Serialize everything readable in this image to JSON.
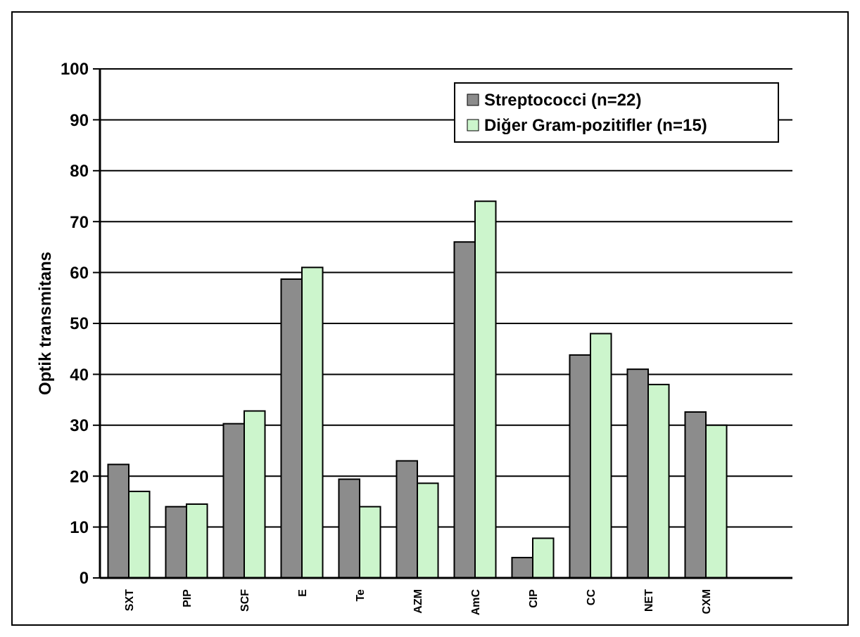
{
  "chart_data": {
    "type": "bar",
    "ylabel": "Optik transmitans",
    "categories": [
      "SXT",
      "PIP",
      "SCF",
      "E",
      "Te",
      "AZM",
      "AmC",
      "CIP",
      "CC",
      "NET",
      "CXM"
    ],
    "series": [
      {
        "name": "Streptococci (n=22)",
        "color": "#8c8c8c",
        "values": [
          22.3,
          14,
          30.3,
          58.7,
          19.4,
          23,
          66,
          4,
          43.8,
          41,
          32.6
        ]
      },
      {
        "name": "Diğer Gram-pozitifler (n=15)",
        "color": "#ccf5cc",
        "values": [
          17,
          14.5,
          32.8,
          61,
          14,
          18.6,
          74,
          7.8,
          48,
          38,
          30
        ]
      }
    ],
    "ylim": [
      0,
      100
    ],
    "yticks": [
      0,
      10,
      20,
      30,
      40,
      50,
      60,
      70,
      80,
      90,
      100
    ],
    "grid": "y",
    "legend": "top right"
  }
}
